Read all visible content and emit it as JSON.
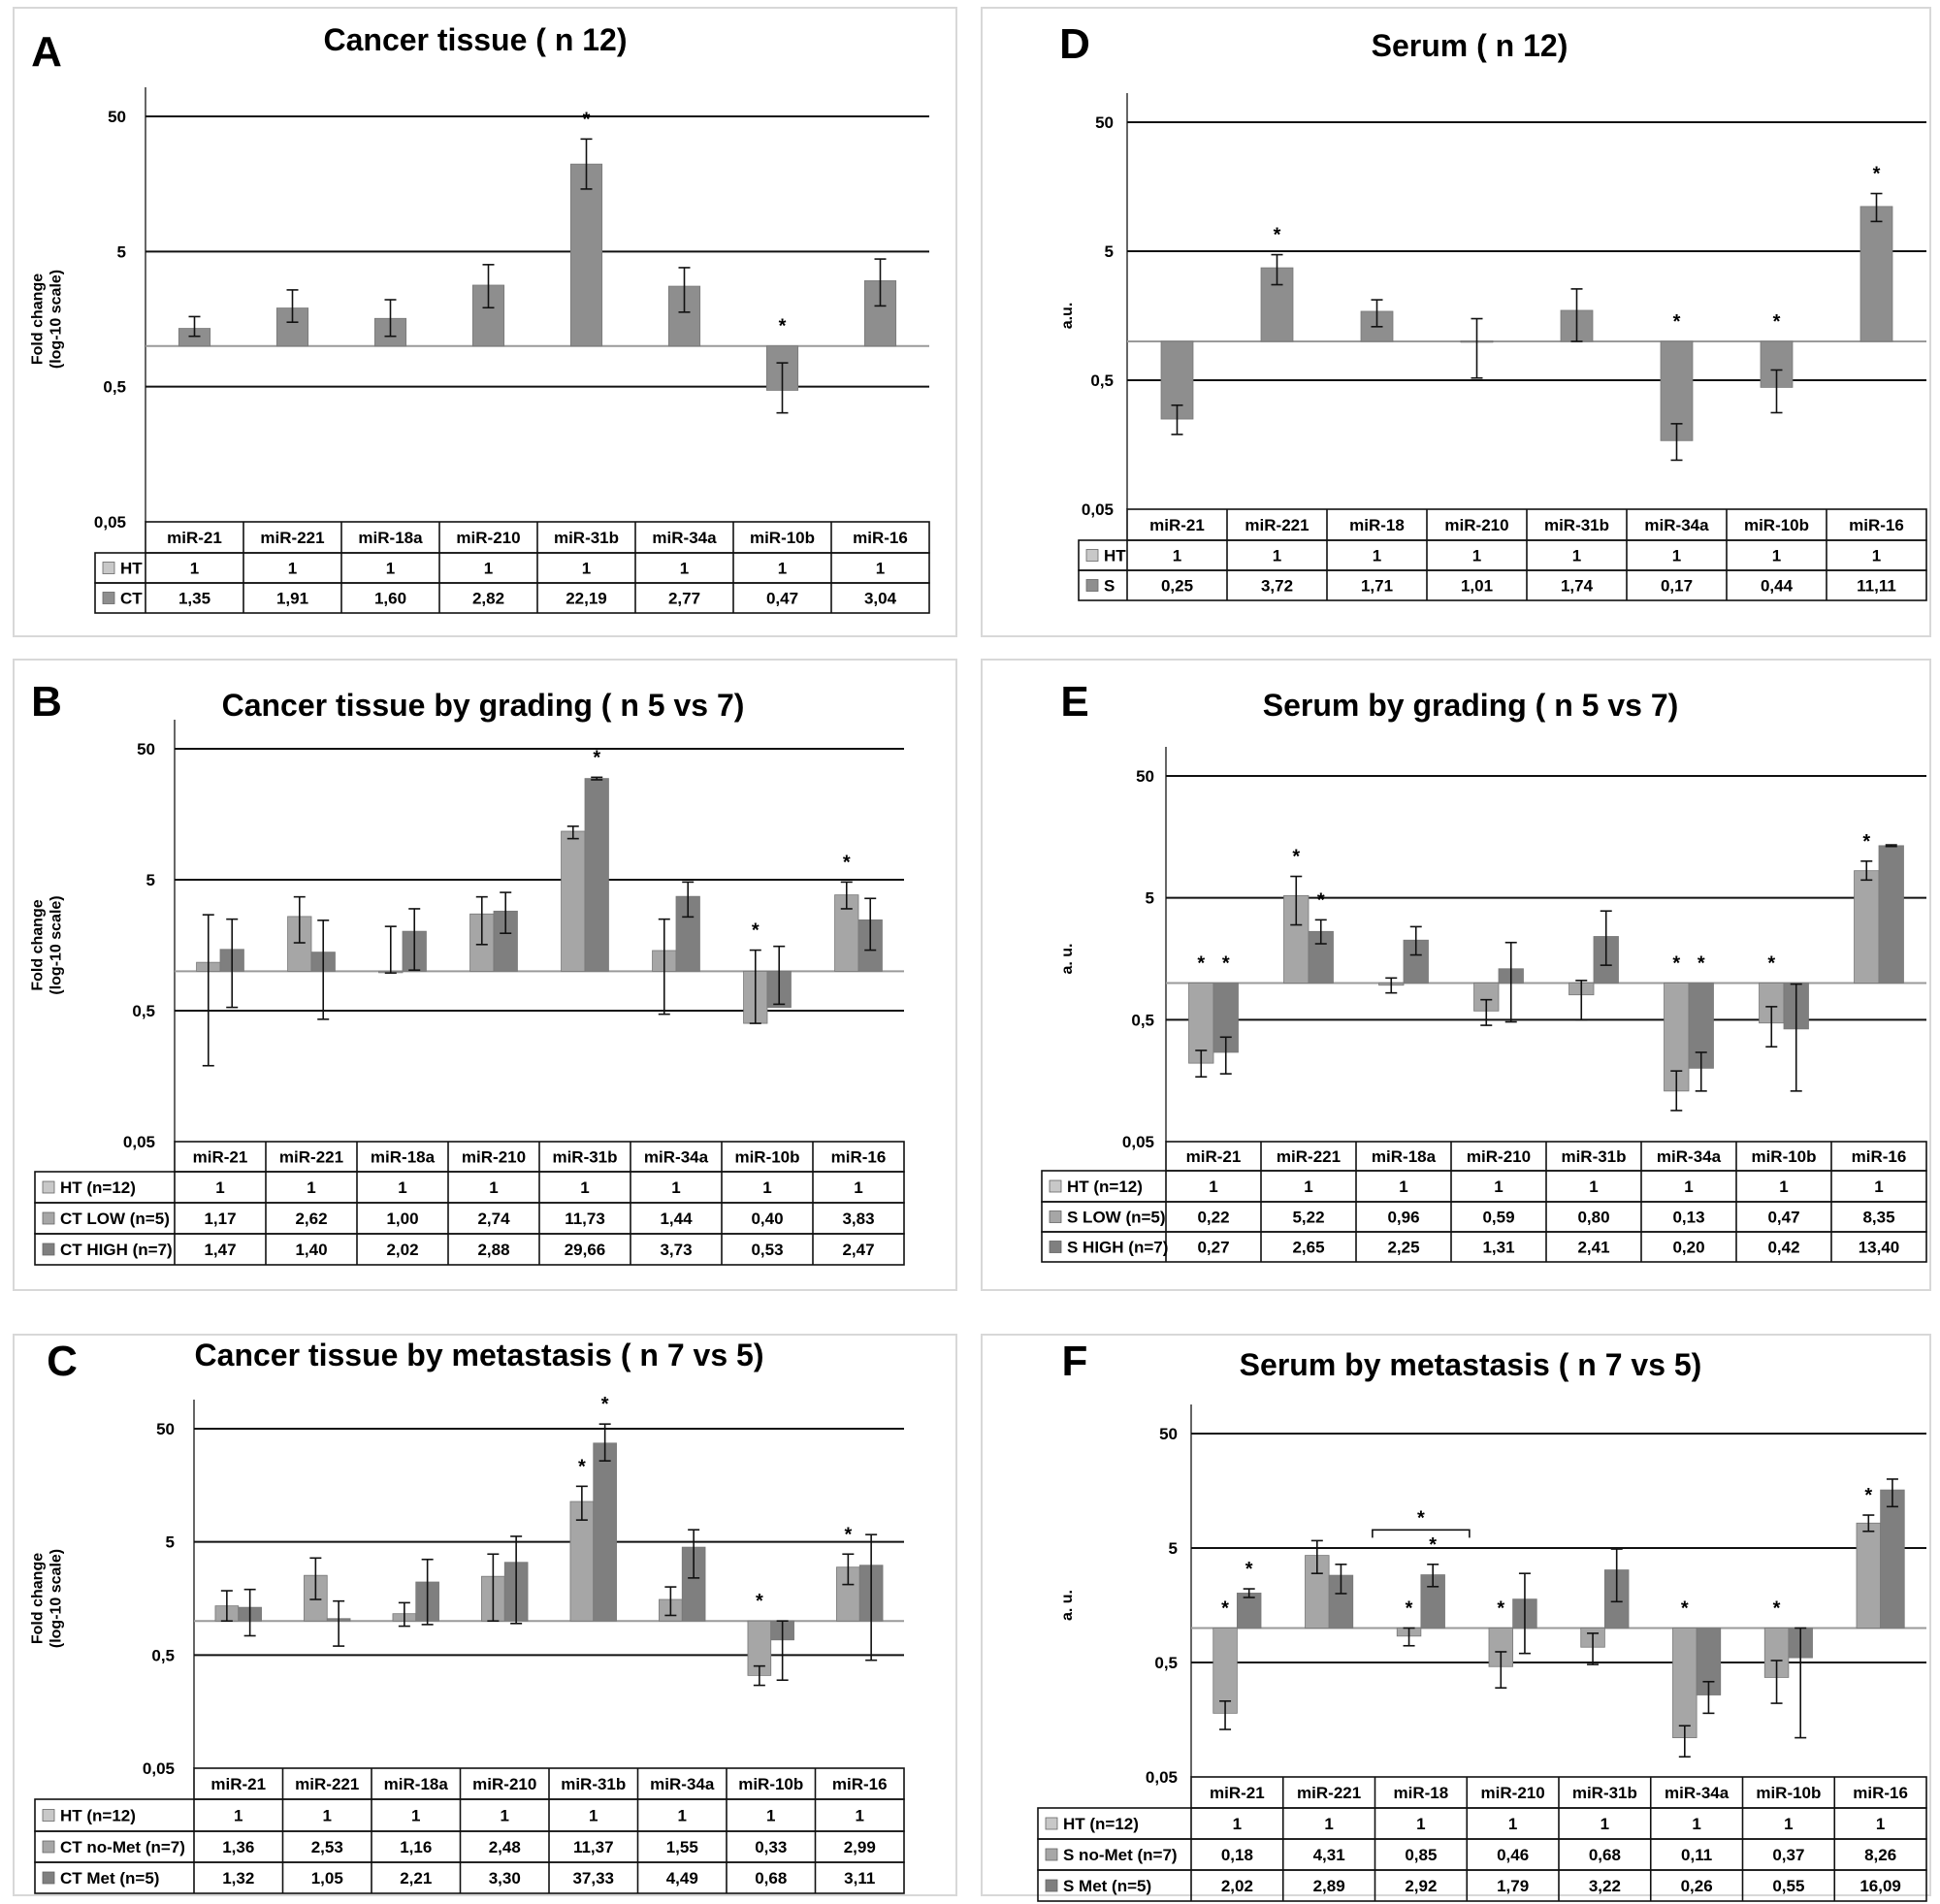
{
  "colors": {
    "ht": "#c8c8c8",
    "s1": "#a6a6a6",
    "s2": "#7f7f7f",
    "single": "#8e8e8e"
  },
  "chart_data": [
    {
      "type": "bar",
      "letter": "A",
      "title": "Cancer tissue ( n 12)",
      "ylabel": [
        "Fold change",
        "(log-10 scale)"
      ],
      "yscale": "log",
      "yticks": [
        "0,05",
        "0,5",
        "5",
        "50"
      ],
      "ylim": [
        0.05,
        100
      ],
      "categories": [
        "miR-21",
        "miR-221",
        "miR-18a",
        "miR-210",
        "miR-31b",
        "miR-34a",
        "miR-10b",
        "miR-16"
      ],
      "series": [
        {
          "name": "HT",
          "values": [
            1,
            1,
            1,
            1,
            1,
            1,
            1,
            1
          ],
          "labels": [
            "1",
            "1",
            "1",
            "1",
            "1",
            "1",
            "1",
            "1"
          ],
          "bar": false
        },
        {
          "name": "CT",
          "values": [
            1.35,
            1.91,
            1.6,
            2.82,
            22.19,
            2.77,
            0.47,
            3.04
          ],
          "labels": [
            "1,35",
            "1,91",
            "1,60",
            "2,82",
            "22,19",
            "2,77",
            "0,47",
            "3,04"
          ],
          "bar": true,
          "err_low": [
            1.18,
            1.5,
            1.18,
            1.92,
            14.5,
            1.78,
            0.32,
            1.98
          ],
          "err_high": [
            1.65,
            2.6,
            2.2,
            4.0,
            34.0,
            3.8,
            0.75,
            4.4
          ],
          "sig": [
            false,
            false,
            false,
            false,
            true,
            false,
            true,
            false
          ]
        }
      ]
    },
    {
      "type": "bar",
      "letter": "B",
      "title": "Cancer tissue by grading ( n 5 vs 7)",
      "ylabel": [
        "Fold change",
        "(log-10 scale)"
      ],
      "yscale": "log",
      "yticks": [
        "0,05",
        "0,5",
        "5",
        "50"
      ],
      "ylim": [
        0.05,
        50
      ],
      "categories": [
        "miR-21",
        "miR-221",
        "miR-18a",
        "miR-210",
        "miR-31b",
        "miR-34a",
        "miR-10b",
        "miR-16"
      ],
      "series": [
        {
          "name": "HT (n=12)",
          "values": [
            1,
            1,
            1,
            1,
            1,
            1,
            1,
            1
          ],
          "labels": [
            "1",
            "1",
            "1",
            "1",
            "1",
            "1",
            "1",
            "1"
          ],
          "bar": false
        },
        {
          "name": "CT LOW (n=5)",
          "values": [
            1.17,
            2.62,
            1.0,
            2.74,
            11.73,
            1.44,
            0.4,
            3.83
          ],
          "labels": [
            "1,17",
            "2,62",
            "1,00",
            "2,74",
            "11,73",
            "1,44",
            "0,40",
            "3,83"
          ],
          "bar": true,
          "err_low": [
            0.19,
            1.65,
            0.97,
            1.6,
            10.3,
            0.47,
            0.4,
            3.0
          ],
          "err_high": [
            2.7,
            3.7,
            2.2,
            3.7,
            12.8,
            2.5,
            1.45,
            4.8
          ],
          "sig": [
            false,
            false,
            false,
            false,
            false,
            false,
            true,
            true
          ]
        },
        {
          "name": "CT HIGH (n=7)",
          "values": [
            1.47,
            1.4,
            2.02,
            2.88,
            29.66,
            3.73,
            0.53,
            2.47
          ],
          "labels": [
            "1,47",
            "1,40",
            "2,02",
            "2,88",
            "29,66",
            "3,73",
            "0,53",
            "2,47"
          ],
          "bar": true,
          "err_low": [
            0.53,
            0.43,
            1.02,
            1.95,
            29.0,
            2.6,
            0.56,
            1.45
          ],
          "err_high": [
            2.5,
            2.45,
            3.0,
            4.0,
            30.3,
            4.8,
            1.55,
            3.6
          ],
          "sig": [
            false,
            false,
            false,
            false,
            true,
            false,
            false,
            false
          ]
        }
      ]
    },
    {
      "type": "bar",
      "letter": "C",
      "title": "Cancer tissue by metastasis ( n 7 vs 5)",
      "ylabel": [
        "Fold change",
        "(log-10 scale)"
      ],
      "yscale": "log",
      "yticks": [
        "0,05",
        "0,5",
        "5",
        "50"
      ],
      "ylim": [
        0.05,
        50
      ],
      "categories": [
        "miR-21",
        "miR-221",
        "miR-18a",
        "miR-210",
        "miR-31b",
        "miR-34a",
        "miR-10b",
        "miR-16"
      ],
      "series": [
        {
          "name": "HT (n=12)",
          "values": [
            1,
            1,
            1,
            1,
            1,
            1,
            1,
            1
          ],
          "labels": [
            "1",
            "1",
            "1",
            "1",
            "1",
            "1",
            "1",
            "1"
          ],
          "bar": false
        },
        {
          "name": "CT no-Met (n=7)",
          "values": [
            1.36,
            2.53,
            1.16,
            2.48,
            11.37,
            1.55,
            0.33,
            2.99
          ],
          "labels": [
            "1,36",
            "2,53",
            "1,16",
            "2,48",
            "11,37",
            "1,55",
            "0,33",
            "2,99"
          ],
          "bar": true,
          "err_low": [
            1.0,
            1.55,
            0.9,
            1.0,
            7.8,
            1.12,
            0.27,
            2.1
          ],
          "err_high": [
            1.85,
            3.6,
            1.45,
            3.9,
            15.5,
            2.0,
            0.4,
            3.9
          ],
          "sig": [
            false,
            false,
            false,
            false,
            true,
            false,
            true,
            true
          ]
        },
        {
          "name": "CT Met (n=5)",
          "values": [
            1.32,
            1.05,
            2.21,
            3.3,
            37.33,
            4.49,
            0.68,
            3.11
          ],
          "labels": [
            "1,32",
            "1,05",
            "2,21",
            "3,30",
            "37,33",
            "4,49",
            "0,68",
            "3,11"
          ],
          "bar": true,
          "err_low": [
            0.74,
            0.6,
            0.93,
            0.95,
            26.0,
            2.4,
            0.3,
            0.45
          ],
          "err_high": [
            1.9,
            1.5,
            3.5,
            5.6,
            55.0,
            6.4,
            1.0,
            5.8
          ],
          "sig": [
            false,
            false,
            false,
            false,
            true,
            false,
            false,
            false
          ]
        }
      ]
    },
    {
      "type": "bar",
      "letter": "D",
      "title": "Serum ( n 12)",
      "ylabel": [
        "a.u."
      ],
      "yscale": "log",
      "yticks": [
        "0,05",
        "0,5",
        "5",
        "50"
      ],
      "ylim": [
        0.05,
        50
      ],
      "categories": [
        "miR-21",
        "miR-221",
        "miR-18",
        "miR-210",
        "miR-31b",
        "miR-34a",
        "miR-10b",
        "miR-16"
      ],
      "series": [
        {
          "name": "HT",
          "values": [
            1,
            1,
            1,
            1,
            1,
            1,
            1,
            1
          ],
          "labels": [
            "1",
            "1",
            "1",
            "1",
            "1",
            "1",
            "1",
            "1"
          ],
          "bar": false
        },
        {
          "name": "S",
          "values": [
            0.25,
            3.72,
            1.71,
            1.01,
            1.74,
            0.17,
            0.44,
            11.11
          ],
          "labels": [
            "0,25",
            "3,72",
            "1,71",
            "1,01",
            "1,74",
            "0,17",
            "0,44",
            "11,11"
          ],
          "bar": true,
          "err_low": [
            0.19,
            2.75,
            1.3,
            0.52,
            1.0,
            0.12,
            0.28,
            8.5
          ],
          "err_high": [
            0.32,
            4.7,
            2.1,
            1.5,
            2.55,
            0.23,
            0.6,
            14.0
          ],
          "sig": [
            false,
            true,
            false,
            false,
            false,
            true,
            true,
            true
          ]
        }
      ]
    },
    {
      "type": "bar",
      "letter": "E",
      "title": "Serum by grading ( n 5 vs 7)",
      "ylabel": [
        "a. u."
      ],
      "yscale": "log",
      "yticks": [
        "0,05",
        "0,5",
        "5",
        "50"
      ],
      "ylim": [
        0.05,
        50
      ],
      "categories": [
        "miR-21",
        "miR-221",
        "miR-18a",
        "miR-210",
        "miR-31b",
        "miR-34a",
        "miR-10b",
        "miR-16"
      ],
      "series": [
        {
          "name": "HT (n=12)",
          "values": [
            1,
            1,
            1,
            1,
            1,
            1,
            1,
            1
          ],
          "labels": [
            "1",
            "1",
            "1",
            "1",
            "1",
            "1",
            "1",
            "1"
          ],
          "bar": false
        },
        {
          "name": "S LOW (n=5)",
          "values": [
            0.22,
            5.22,
            0.96,
            0.59,
            0.8,
            0.13,
            0.47,
            8.35
          ],
          "labels": [
            "0,22",
            "5,22",
            "0,96",
            "0,59",
            "0,80",
            "0,13",
            "0,47",
            "8,35"
          ],
          "bar": true,
          "err_low": [
            0.17,
            3.0,
            0.83,
            0.45,
            0.5,
            0.09,
            0.3,
            7.0
          ],
          "err_high": [
            0.28,
            7.5,
            1.1,
            0.73,
            1.05,
            0.19,
            0.64,
            10.0
          ],
          "sig": [
            true,
            true,
            false,
            false,
            false,
            true,
            true,
            true
          ]
        },
        {
          "name": "S HIGH (n=7)",
          "values": [
            0.27,
            2.65,
            2.25,
            1.31,
            2.41,
            0.2,
            0.42,
            13.4
          ],
          "labels": [
            "0,27",
            "2,65",
            "2,25",
            "1,31",
            "2,41",
            "0,20",
            "0,42",
            "13,40"
          ],
          "bar": true,
          "err_low": [
            0.18,
            2.1,
            1.7,
            0.48,
            1.4,
            0.13,
            0.13,
            13.2
          ],
          "err_high": [
            0.36,
            3.3,
            2.9,
            2.15,
            3.9,
            0.27,
            0.98,
            13.6
          ],
          "sig": [
            true,
            true,
            false,
            false,
            false,
            true,
            false,
            false
          ]
        }
      ]
    },
    {
      "type": "bar",
      "letter": "F",
      "title": "Serum by metastasis ( n 7 vs 5)",
      "ylabel": [
        "a. u."
      ],
      "yscale": "log",
      "yticks": [
        "0,05",
        "0,5",
        "5",
        "50"
      ],
      "ylim": [
        0.05,
        50
      ],
      "categories": [
        "miR-21",
        "miR-221",
        "miR-18",
        "miR-210",
        "miR-31b",
        "miR-34a",
        "miR-10b",
        "miR-16"
      ],
      "series": [
        {
          "name": "HT (n=12)",
          "values": [
            1,
            1,
            1,
            1,
            1,
            1,
            1,
            1
          ],
          "labels": [
            "1",
            "1",
            "1",
            "1",
            "1",
            "1",
            "1",
            "1"
          ],
          "bar": false
        },
        {
          "name": "S no-Met (n=7)",
          "values": [
            0.18,
            4.31,
            0.85,
            0.46,
            0.68,
            0.11,
            0.37,
            8.26
          ],
          "labels": [
            "0,18",
            "4,31",
            "0,85",
            "0,46",
            "0,68",
            "0,11",
            "0,37",
            "8,26"
          ],
          "bar": true,
          "err_low": [
            0.13,
            3.0,
            0.7,
            0.3,
            0.48,
            0.075,
            0.22,
            7.0
          ],
          "err_high": [
            0.23,
            5.8,
            1.0,
            0.62,
            0.9,
            0.14,
            0.52,
            9.7
          ],
          "sig": [
            true,
            false,
            true,
            true,
            false,
            true,
            true,
            true
          ]
        },
        {
          "name": "S Met (n=5)",
          "values": [
            2.02,
            2.89,
            2.92,
            1.79,
            3.22,
            0.26,
            0.55,
            16.09
          ],
          "labels": [
            "2,02",
            "2,89",
            "2,92",
            "1,79",
            "3,22",
            "0,26",
            "0,55",
            "16,09"
          ],
          "bar": true,
          "err_low": [
            1.85,
            2.0,
            2.3,
            0.6,
            1.7,
            0.18,
            0.11,
            11.5
          ],
          "err_high": [
            2.2,
            3.6,
            3.6,
            3.0,
            4.9,
            0.34,
            1.0,
            20.0
          ],
          "sig": [
            true,
            false,
            true,
            false,
            false,
            false,
            false,
            false
          ]
        }
      ],
      "bracket": {
        "categoryIndex": 2,
        "label": "*"
      }
    }
  ]
}
